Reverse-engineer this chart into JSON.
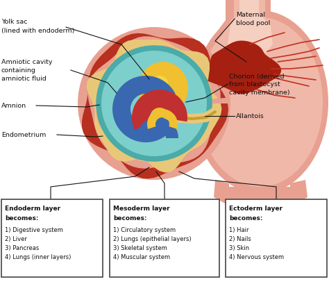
{
  "bg_color": "#ffffff",
  "uterus_outer_color": "#e8a090",
  "uterus_mid_color": "#f0b8a8",
  "uterus_inner_color": "#f5cfc0",
  "blood_pool_color": "#a52010",
  "blood_pool2_color": "#c03020",
  "vessel_color": "#c03020",
  "endometrium_color": "#b83020",
  "chorion_color": "#e8c878",
  "teal_outer_color": "#4aaba8",
  "teal_inner_color": "#7dcfcc",
  "yolk_color": "#f0c030",
  "yolk_shadow": "#e0a820",
  "blue_embryo_color": "#3a68b0",
  "red_embryo_color": "#c03030",
  "allantois_color": "#e8c878",
  "box_border_color": "#444444",
  "box_bg_color": "#ffffff",
  "text_color": "#111111",
  "line_color": "#111111",
  "box1_title": "Endoderm layer\nbecomes:",
  "box1_items": [
    "1) Digestive system",
    "2) Liver",
    "3) Pancreas",
    "4) Lungs (inner layers)"
  ],
  "box2_title": "Mesoderm layer\nbecomes:",
  "box2_items": [
    "1) Circulatory system",
    "2) Lungs (epithelial layers)",
    "3) Skeletal system",
    "4) Muscular system"
  ],
  "box3_title": "Ectoderm layer\nbecomes:",
  "box3_items": [
    "1) Hair",
    "2) Nails",
    "3) Skin",
    "4) Nervous system"
  ]
}
